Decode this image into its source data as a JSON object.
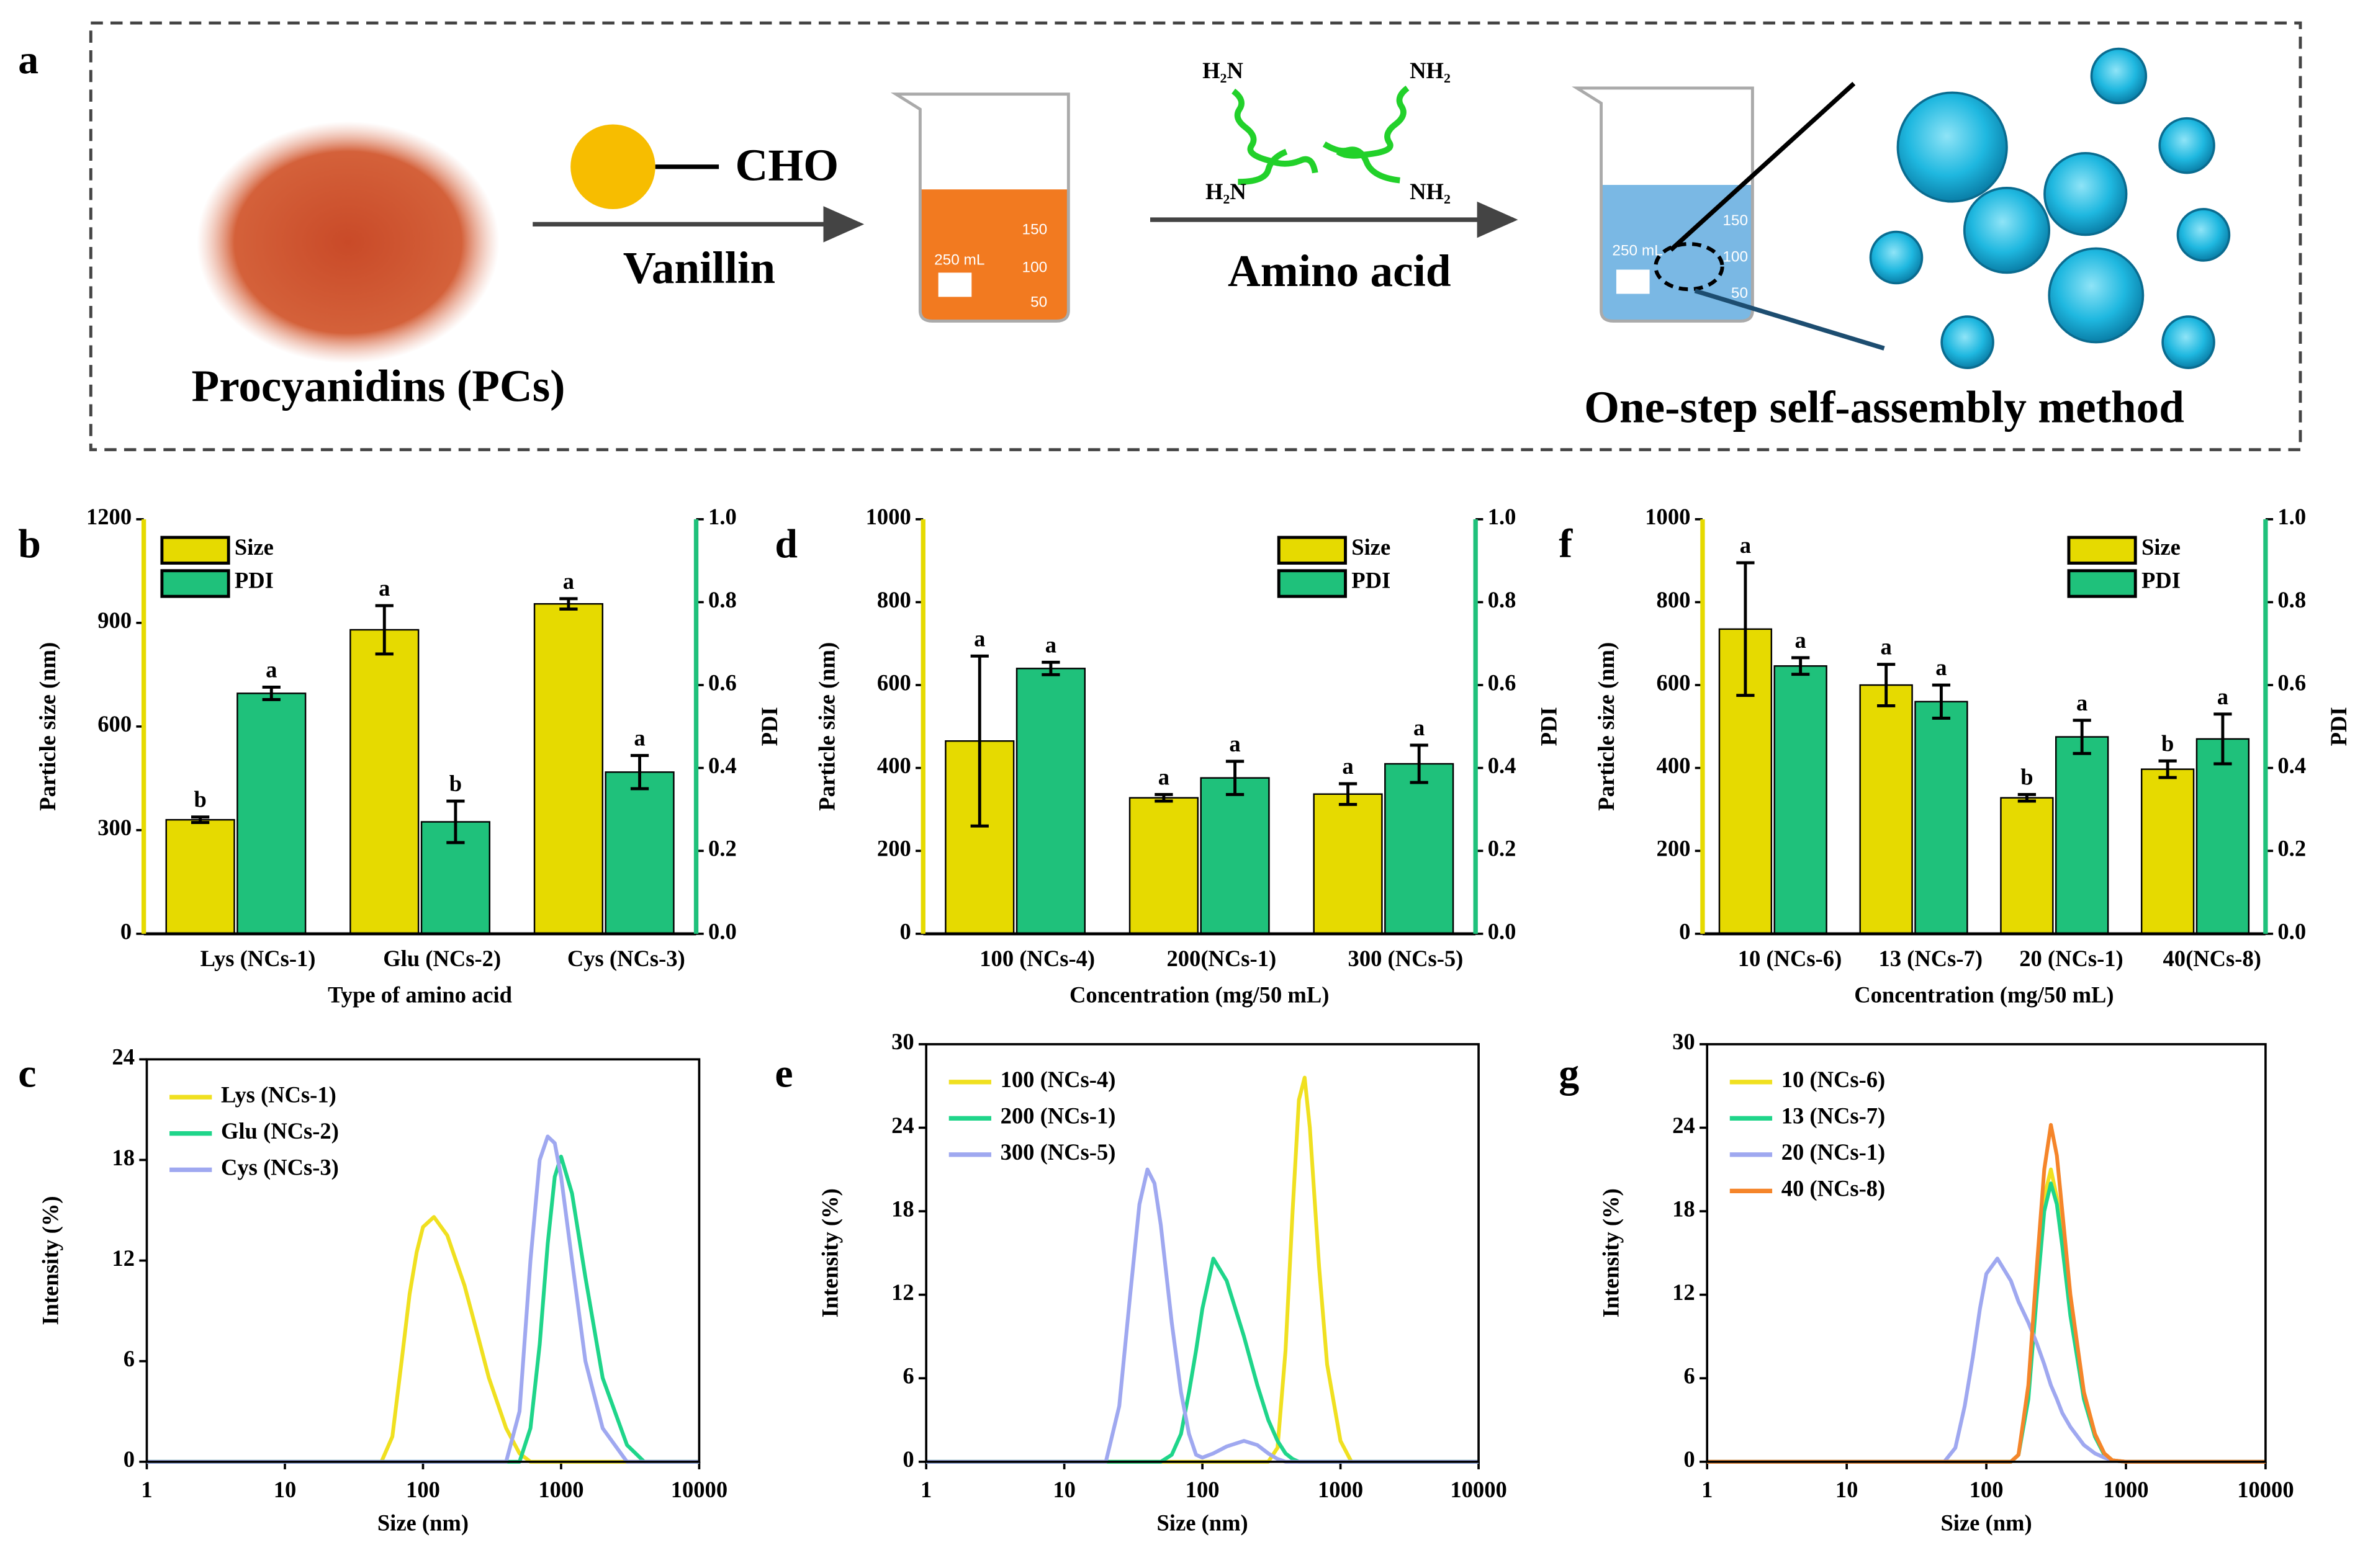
{
  "schematic": {
    "label": "a",
    "powder": "Procyanidins (PCs)",
    "group": "CHO",
    "reagent1": "Vanillin",
    "reagent2": "Amino acid",
    "amine_labels": [
      "H₂N",
      "NH₂",
      "H₂N",
      "NH₂"
    ],
    "beaker1_labels": [
      "250 mL",
      "150",
      "100",
      "50"
    ],
    "beaker2_labels": [
      "250 mL",
      "150",
      "100",
      "50"
    ],
    "method": "One-step self-assembly method"
  },
  "chart_data": [
    {
      "type": "bar",
      "panel": "b",
      "categories": [
        "Lys (NCs-1)",
        "Glu (NCs-2)",
        "Cys (NCs-3)"
      ],
      "series": [
        {
          "name": "Size",
          "color": "#e6da00",
          "values": [
            330,
            880,
            955
          ],
          "errors": [
            8,
            70,
            15
          ],
          "letters": [
            "b",
            "a",
            "a"
          ]
        },
        {
          "name": "PDI",
          "color": "#1fc17b",
          "axis": "y2",
          "values": [
            0.58,
            0.27,
            0.39
          ],
          "errors": [
            0.015,
            0.05,
            0.04
          ],
          "letters": [
            "a",
            "b",
            "a"
          ]
        }
      ],
      "ylim": [
        0,
        1200
      ],
      "yticks": [
        0,
        300,
        600,
        900,
        1200
      ],
      "y2lim": [
        0,
        1
      ],
      "y2ticks": [
        {
          "value": 0,
          "label": "0.0"
        },
        0.2,
        0.4,
        0.6,
        0.8,
        {
          "value": 1,
          "label": "1.0"
        }
      ],
      "ylabel": "Particle size (nm)",
      "y2label": "PDI",
      "xlabel": "Type of amino acid",
      "legend": "upper left"
    },
    {
      "type": "line",
      "panel": "c",
      "xscale": "log",
      "x": [
        1,
        10,
        50,
        60,
        70,
        80,
        90,
        100,
        120,
        150,
        200,
        250,
        300,
        400,
        500,
        600,
        700,
        800,
        900,
        1000,
        1200,
        1500,
        2000,
        3000,
        4000,
        10000
      ],
      "series": [
        {
          "name": "Lys (NCs-1)",
          "color": "#f0e020",
          "values": [
            0,
            0,
            0,
            1.5,
            6,
            10,
            12.5,
            14,
            14.6,
            13.5,
            10.5,
            7.5,
            5,
            2,
            0.5,
            0,
            0,
            0,
            0,
            0,
            0,
            0,
            0,
            0,
            0,
            0
          ]
        },
        {
          "name": "Glu (NCs-2)",
          "color": "#1fd58a",
          "values": [
            0,
            0,
            0,
            0,
            0,
            0,
            0,
            0,
            0,
            0,
            0,
            0,
            0,
            0,
            0,
            2,
            7,
            13,
            17,
            18.2,
            16,
            11,
            5,
            1,
            0,
            0
          ]
        },
        {
          "name": "Cys (NCs-3)",
          "color": "#9fa8f0",
          "values": [
            0,
            0,
            0,
            0,
            0,
            0,
            0,
            0,
            0,
            0,
            0,
            0,
            0,
            0,
            3,
            12,
            18,
            19.4,
            19,
            17,
            12,
            6,
            2,
            0,
            0,
            0
          ]
        }
      ],
      "xlim": [
        1,
        10000
      ],
      "xticks": [
        1,
        10,
        100,
        1000,
        10000
      ],
      "ylim": [
        0,
        24
      ],
      "yticks": [
        0,
        6,
        12,
        18,
        24
      ],
      "xlabel": "Size (nm)",
      "ylabel": "Intensity (%)",
      "legend": "upper left"
    },
    {
      "type": "bar",
      "panel": "d",
      "categories": [
        "100 (NCs-4)",
        "200(NCs-1)",
        "300 (NCs-5)"
      ],
      "series": [
        {
          "name": "Size",
          "color": "#e6da00",
          "values": [
            465,
            328,
            337
          ],
          "errors": [
            205,
            8,
            25
          ],
          "letters": [
            "a",
            "a",
            "a"
          ]
        },
        {
          "name": "PDI",
          "color": "#1fc17b",
          "axis": "y2",
          "values": [
            0.64,
            0.376,
            0.41
          ],
          "errors": [
            0.015,
            0.04,
            0.045
          ],
          "letters": [
            "a",
            "a",
            "a"
          ]
        }
      ],
      "ylim": [
        0,
        1000
      ],
      "yticks": [
        0,
        200,
        400,
        600,
        800,
        1000
      ],
      "y2lim": [
        0,
        1
      ],
      "y2ticks": [
        {
          "value": 0,
          "label": "0.0"
        },
        0.2,
        0.4,
        0.6,
        0.8,
        {
          "value": 1,
          "label": "1.0"
        }
      ],
      "ylabel": "Particle size (nm)",
      "y2label": "PDI",
      "xlabel": "Concentration (mg/50 mL)",
      "legend": "upper right"
    },
    {
      "type": "line",
      "panel": "e",
      "xscale": "log",
      "x": [
        1,
        10,
        20,
        25,
        30,
        35,
        40,
        45,
        50,
        60,
        70,
        80,
        90,
        100,
        120,
        150,
        200,
        250,
        300,
        350,
        400,
        450,
        500,
        550,
        600,
        700,
        800,
        1000,
        1200,
        10000
      ],
      "series": [
        {
          "name": "100 (NCs-4)",
          "color": "#f0e020",
          "values": [
            0,
            0,
            0,
            0,
            0,
            0,
            0,
            0,
            0,
            0,
            0,
            0,
            0,
            0,
            0,
            0,
            0,
            0,
            0,
            1,
            8,
            18,
            26,
            27.6,
            24,
            14,
            7,
            1.5,
            0,
            0
          ]
        },
        {
          "name": "200 (NCs-1)",
          "color": "#1fd58a",
          "values": [
            0,
            0,
            0,
            0,
            0,
            0,
            0,
            0,
            0,
            0.5,
            2,
            5,
            8,
            11,
            14.6,
            13,
            9,
            5.5,
            3,
            1.5,
            0.6,
            0.2,
            0,
            0,
            0,
            0,
            0,
            0,
            0,
            0
          ]
        },
        {
          "name": "300 (NCs-5)",
          "color": "#9fa8f0",
          "values": [
            0,
            0,
            0,
            4,
            12,
            18.5,
            21,
            20,
            17,
            10,
            5,
            2,
            0.5,
            0.3,
            0.6,
            1.1,
            1.5,
            1.2,
            0.6,
            0.2,
            0,
            0,
            0,
            0,
            0,
            0,
            0,
            0,
            0,
            0
          ]
        }
      ],
      "xlim": [
        1,
        10000
      ],
      "xticks": [
        1,
        10,
        100,
        1000,
        10000
      ],
      "ylim": [
        0,
        30
      ],
      "yticks": [
        0,
        6,
        12,
        18,
        24,
        30
      ],
      "xlabel": "Size (nm)",
      "ylabel": "Intensity (%)",
      "legend": "upper left"
    },
    {
      "type": "bar",
      "panel": "f",
      "categories": [
        "10 (NCs-6)",
        "13 (NCs-7)",
        "20 (NCs-1)",
        "40(NCs-8)"
      ],
      "series": [
        {
          "name": "Size",
          "color": "#e6da00",
          "values": [
            735,
            600,
            328,
            397
          ],
          "errors": [
            160,
            50,
            8,
            20
          ],
          "letters": [
            "a",
            "a",
            "b",
            "b"
          ]
        },
        {
          "name": "PDI",
          "color": "#1fc17b",
          "axis": "y2",
          "values": [
            0.646,
            0.56,
            0.475,
            0.47
          ],
          "errors": [
            0.02,
            0.04,
            0.04,
            0.06
          ],
          "letters": [
            "a",
            "a",
            "a",
            "a"
          ]
        }
      ],
      "ylim": [
        0,
        1000
      ],
      "yticks": [
        0,
        200,
        400,
        600,
        800,
        1000
      ],
      "y2lim": [
        0,
        1
      ],
      "y2ticks": [
        {
          "value": 0,
          "label": "0.0"
        },
        0.2,
        0.4,
        0.6,
        0.8,
        {
          "value": 1,
          "label": "1.0"
        }
      ],
      "ylabel": "Particle size (nm)",
      "y2label": "PDI",
      "xlabel": "Concentration (mg/50 mL)",
      "legend": "upper right"
    },
    {
      "type": "line",
      "panel": "g",
      "xscale": "log",
      "x": [
        1,
        10,
        50,
        60,
        70,
        80,
        90,
        100,
        120,
        150,
        170,
        200,
        230,
        260,
        290,
        320,
        350,
        400,
        500,
        600,
        700,
        800,
        1000,
        1200,
        10000
      ],
      "series": [
        {
          "name": "10 (NCs-6)",
          "color": "#f0e020",
          "values": [
            0,
            0,
            0,
            0,
            0,
            0,
            0,
            0,
            0,
            0,
            0.5,
            5,
            13,
            19,
            21,
            19,
            16,
            11,
            5,
            2,
            0.6,
            0.1,
            0,
            0,
            0
          ]
        },
        {
          "name": "13 (NCs-7)",
          "color": "#1fd58a",
          "values": [
            0,
            0,
            0,
            0,
            0,
            0,
            0,
            0,
            0,
            0,
            0.5,
            4.5,
            12,
            18,
            20,
            18.5,
            15.5,
            10.5,
            4.5,
            1.8,
            0.5,
            0.1,
            0,
            0,
            0
          ]
        },
        {
          "name": "20 (NCs-1)",
          "color": "#9fa8f0",
          "values": [
            0,
            0,
            0,
            1,
            4,
            7.5,
            11,
            13.5,
            14.6,
            13,
            11.5,
            10,
            8.5,
            7,
            5.5,
            4.5,
            3.5,
            2.5,
            1.2,
            0.6,
            0.3,
            0.1,
            0,
            0,
            0
          ]
        },
        {
          "name": "40 (NCs-8)",
          "color": "#f5852a",
          "values": [
            0,
            0,
            0,
            0,
            0,
            0,
            0,
            0,
            0,
            0,
            0.5,
            5.5,
            14,
            21,
            24.2,
            22,
            18,
            12,
            5,
            2,
            0.6,
            0.1,
            0,
            0,
            0
          ]
        }
      ],
      "xlim": [
        1,
        10000
      ],
      "xticks": [
        1,
        10,
        100,
        1000,
        10000
      ],
      "ylim": [
        0,
        30
      ],
      "yticks": [
        0,
        6,
        12,
        18,
        24,
        30
      ],
      "xlabel": "Size (nm)",
      "ylabel": "Intensity (%)",
      "legend": "upper left"
    }
  ]
}
